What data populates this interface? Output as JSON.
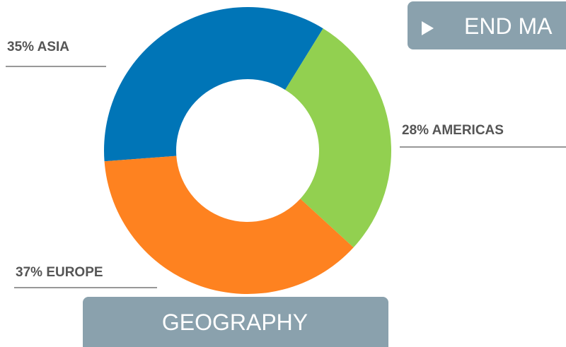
{
  "chart_data": {
    "type": "donut",
    "categories": [
      "ASIA",
      "AMERICAS",
      "EUROPE"
    ],
    "values": [
      35,
      28,
      37
    ],
    "value_labels": [
      "35%",
      "28%",
      "37%"
    ],
    "colors": [
      "#0075b7",
      "#92d050",
      "#fe8220"
    ]
  },
  "buttons": [
    "END MA",
    "GEOGRAPHY"
  ]
}
